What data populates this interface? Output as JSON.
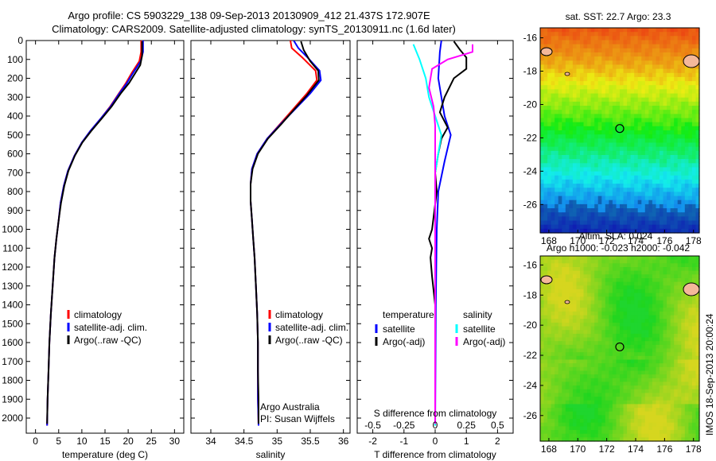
{
  "header": {
    "line1": "Argo profile: CS 5903229_138 09-Sep-2013 20130909_412 21.437S 172.907E",
    "line2": "Climatology: CARS2009. Satellite-adjusted climatology: synTS_20130911.nc (1.6d later)"
  },
  "colors": {
    "climatology": "#ff0000",
    "satellite": "#0000ff",
    "argo": "#000000",
    "sal_sat": "#00ffff",
    "sal_argo": "#ff00ff"
  },
  "chart_data": [
    {
      "type": "line",
      "id": "temperature",
      "xlabel": "temperature (deg C)",
      "ylabel": "",
      "xlim": [
        -2,
        32
      ],
      "ylim": [
        2080,
        0
      ],
      "xticks": [
        0,
        5,
        10,
        15,
        20,
        25,
        30
      ],
      "yticks": [
        0,
        100,
        200,
        300,
        400,
        500,
        600,
        700,
        800,
        900,
        1000,
        1100,
        1200,
        1300,
        1400,
        1500,
        1600,
        1700,
        1800,
        1900,
        2000
      ],
      "legend": [
        "climatology",
        "satellite-adj. clim.",
        "Argo(..raw -QC)"
      ],
      "series": [
        {
          "name": "climatology",
          "color": "#ff0000",
          "points": [
            [
              22.8,
              0
            ],
            [
              22.8,
              60
            ],
            [
              22.4,
              110
            ],
            [
              20.8,
              170
            ],
            [
              19.4,
              230
            ],
            [
              18.0,
              280
            ],
            [
              16.1,
              350
            ],
            [
              14.2,
              410
            ],
            [
              11.8,
              480
            ],
            [
              10.0,
              540
            ],
            [
              8.4,
              610
            ],
            [
              7.0,
              690
            ],
            [
              6.1,
              770
            ],
            [
              5.4,
              860
            ],
            [
              5.0,
              950
            ],
            [
              4.5,
              1050
            ],
            [
              4.1,
              1150
            ],
            [
              3.7,
              1300
            ],
            [
              3.3,
              1450
            ],
            [
              3.0,
              1600
            ],
            [
              2.8,
              1750
            ],
            [
              2.6,
              1900
            ],
            [
              2.5,
              2040
            ]
          ]
        },
        {
          "name": "satellite-adj. clim.",
          "color": "#0000ff",
          "points": [
            [
              23.2,
              0
            ],
            [
              23.2,
              60
            ],
            [
              22.7,
              110
            ],
            [
              21.1,
              170
            ],
            [
              19.6,
              230
            ],
            [
              18.1,
              280
            ],
            [
              16.2,
              350
            ],
            [
              14.2,
              410
            ],
            [
              11.8,
              480
            ],
            [
              10.0,
              540
            ],
            [
              8.4,
              610
            ],
            [
              7.0,
              690
            ],
            [
              6.1,
              770
            ],
            [
              5.4,
              860
            ],
            [
              5.0,
              950
            ],
            [
              4.5,
              1050
            ],
            [
              4.1,
              1150
            ],
            [
              3.7,
              1300
            ],
            [
              3.3,
              1450
            ],
            [
              3.0,
              1600
            ],
            [
              2.8,
              1750
            ],
            [
              2.6,
              1900
            ],
            [
              2.5,
              2040
            ]
          ]
        },
        {
          "name": "Argo(..raw -QC)",
          "color": "#000000",
          "points": [
            [
              23.0,
              4
            ],
            [
              23.0,
              80
            ],
            [
              22.6,
              130
            ],
            [
              21.6,
              170
            ],
            [
              20.2,
              225
            ],
            [
              18.4,
              280
            ],
            [
              16.4,
              350
            ],
            [
              14.4,
              410
            ],
            [
              12.0,
              480
            ],
            [
              10.1,
              540
            ],
            [
              8.5,
              610
            ],
            [
              7.1,
              690
            ],
            [
              6.2,
              770
            ],
            [
              5.5,
              860
            ],
            [
              5.0,
              950
            ],
            [
              4.5,
              1050
            ],
            [
              4.1,
              1150
            ],
            [
              3.7,
              1300
            ],
            [
              3.3,
              1450
            ],
            [
              3.0,
              1600
            ],
            [
              2.8,
              1750
            ],
            [
              2.6,
              1900
            ],
            [
              2.5,
              2030
            ]
          ]
        }
      ]
    },
    {
      "type": "line",
      "id": "salinity",
      "xlabel": "salinity",
      "ylabel": "",
      "xlim": [
        33.7,
        36.1
      ],
      "ylim": [
        2080,
        0
      ],
      "xticks": [
        34,
        34.5,
        35,
        35.5,
        36
      ],
      "legend": [
        "climatology",
        "satellite-adj. clim.",
        "Argo(..raw -QC)"
      ],
      "annotation": [
        "Argo Australia",
        "PI: Susan Wijffels"
      ],
      "series": [
        {
          "name": "climatology",
          "color": "#ff0000",
          "points": [
            [
              35.2,
              0
            ],
            [
              35.22,
              40
            ],
            [
              35.38,
              90
            ],
            [
              35.58,
              160
            ],
            [
              35.6,
              210
            ],
            [
              35.45,
              280
            ],
            [
              35.25,
              360
            ],
            [
              35.05,
              440
            ],
            [
              34.85,
              520
            ],
            [
              34.7,
              600
            ],
            [
              34.62,
              680
            ],
            [
              34.6,
              760
            ],
            [
              34.6,
              850
            ],
            [
              34.62,
              950
            ],
            [
              34.64,
              1050
            ],
            [
              34.66,
              1150
            ],
            [
              34.68,
              1300
            ],
            [
              34.7,
              1450
            ],
            [
              34.71,
              1600
            ],
            [
              34.71,
              1750
            ],
            [
              34.71,
              1900
            ],
            [
              34.72,
              2040
            ]
          ]
        },
        {
          "name": "satellite-adj. clim.",
          "color": "#0000ff",
          "points": [
            [
              35.25,
              0
            ],
            [
              35.32,
              40
            ],
            [
              35.46,
              90
            ],
            [
              35.64,
              160
            ],
            [
              35.66,
              210
            ],
            [
              35.5,
              280
            ],
            [
              35.28,
              360
            ],
            [
              35.06,
              440
            ],
            [
              34.85,
              520
            ],
            [
              34.7,
              600
            ],
            [
              34.62,
              680
            ],
            [
              34.6,
              760
            ],
            [
              34.6,
              850
            ],
            [
              34.62,
              950
            ],
            [
              34.64,
              1050
            ],
            [
              34.66,
              1150
            ],
            [
              34.68,
              1300
            ],
            [
              34.7,
              1450
            ],
            [
              34.71,
              1600
            ],
            [
              34.71,
              1750
            ],
            [
              34.71,
              1900
            ],
            [
              34.72,
              2040
            ]
          ]
        },
        {
          "name": "Argo(..raw -QC)",
          "color": "#000000",
          "points": [
            [
              35.36,
              4
            ],
            [
              35.4,
              50
            ],
            [
              35.5,
              110
            ],
            [
              35.62,
              160
            ],
            [
              35.63,
              210
            ],
            [
              35.45,
              290
            ],
            [
              35.27,
              360
            ],
            [
              35.07,
              440
            ],
            [
              34.86,
              520
            ],
            [
              34.71,
              600
            ],
            [
              34.63,
              680
            ],
            [
              34.6,
              760
            ],
            [
              34.6,
              850
            ],
            [
              34.62,
              950
            ],
            [
              34.64,
              1050
            ],
            [
              34.66,
              1150
            ],
            [
              34.68,
              1300
            ],
            [
              34.7,
              1450
            ],
            [
              34.71,
              1600
            ],
            [
              34.71,
              1750
            ],
            [
              34.72,
              1900
            ],
            [
              34.72,
              2030
            ]
          ]
        }
      ]
    },
    {
      "type": "line",
      "id": "difference",
      "xlabel": "T difference from climatology",
      "x2label": "S difference from climatology",
      "xlim": [
        -2.5,
        2.5
      ],
      "ylim": [
        2080,
        0
      ],
      "xticks": [
        -2,
        -1,
        0,
        1,
        2
      ],
      "xticks_s": [
        "-0.5",
        "-0.25",
        "0",
        "0.25",
        "0.5"
      ],
      "legend_t": {
        "title": "temperature",
        "items": [
          "satellite",
          "Argo(-adj)"
        ]
      },
      "legend_s": {
        "title": "salinity",
        "items": [
          "satellite",
          "Argo(-adj)"
        ]
      },
      "series": [
        {
          "name": "T satellite",
          "color": "#0000ff",
          "points": [
            [
              0.2,
              0
            ],
            [
              0.15,
              60
            ],
            [
              0.1,
              200
            ],
            [
              0.3,
              400
            ],
            [
              0.5,
              500
            ],
            [
              0.3,
              640
            ],
            [
              0.1,
              800
            ],
            [
              0.05,
              1000
            ],
            [
              0.02,
              1400
            ],
            [
              0.0,
              2040
            ]
          ]
        },
        {
          "name": "T Argo(-adj)",
          "color": "#000000",
          "points": [
            [
              0.6,
              4
            ],
            [
              0.8,
              50
            ],
            [
              1.0,
              90
            ],
            [
              1.0,
              150
            ],
            [
              0.6,
              200
            ],
            [
              0.3,
              300
            ],
            [
              0.15,
              380
            ],
            [
              0.4,
              460
            ],
            [
              0.2,
              520
            ],
            [
              0.1,
              600
            ],
            [
              0.0,
              700
            ],
            [
              0.05,
              800
            ],
            [
              -0.1,
              1000
            ],
            [
              -0.2,
              1050
            ],
            [
              -0.1,
              1100
            ],
            [
              -0.15,
              1150
            ],
            [
              -0.1,
              1250
            ],
            [
              0.0,
              1400
            ],
            [
              0.0,
              2030
            ]
          ]
        },
        {
          "name": "S satellite",
          "color": "#00ffff",
          "points": [
            [
              -0.7,
              20
            ],
            [
              -0.5,
              100
            ],
            [
              -0.3,
              200
            ],
            [
              -0.2,
              300
            ],
            [
              0.0,
              400
            ],
            [
              0.2,
              500
            ],
            [
              0.1,
              600
            ],
            [
              0.0,
              700
            ],
            [
              0.0,
              2040
            ]
          ]
        },
        {
          "name": "S Argo(-adj)",
          "color": "#ff00ff",
          "points": [
            [
              1.2,
              20
            ],
            [
              1.2,
              60
            ],
            [
              0.4,
              100
            ],
            [
              -0.1,
              150
            ],
            [
              -0.2,
              250
            ],
            [
              -0.05,
              350
            ],
            [
              0.0,
              450
            ],
            [
              0.0,
              2030
            ]
          ]
        }
      ]
    },
    {
      "type": "heatmap",
      "id": "sst",
      "title": "sat. SST: 22.7 Argo: 23.3",
      "xticks": [
        168,
        170,
        172,
        174,
        176,
        178
      ],
      "yticks": [
        -16,
        -18,
        -20,
        -22,
        -24,
        -26
      ],
      "xlim": [
        167.4,
        178.4
      ],
      "ylim": [
        -15.4,
        -27.7
      ],
      "marker": [
        172.9,
        -21.44
      ]
    },
    {
      "type": "heatmap",
      "id": "sla",
      "title": "Altim. SLA: 0.024",
      "subtitle": "Argo h1000: -0.023 h2000: -0.042",
      "xticks": [
        168,
        170,
        172,
        174,
        176,
        178
      ],
      "yticks": [
        -16,
        -18,
        -20,
        -22,
        -24,
        -26
      ],
      "xlim": [
        167.4,
        178.4
      ],
      "ylim": [
        -15.4,
        -27.7
      ],
      "marker": [
        172.9,
        -21.44
      ]
    }
  ],
  "side_label": "IMOS 18-Sep-2013 20:00:24"
}
